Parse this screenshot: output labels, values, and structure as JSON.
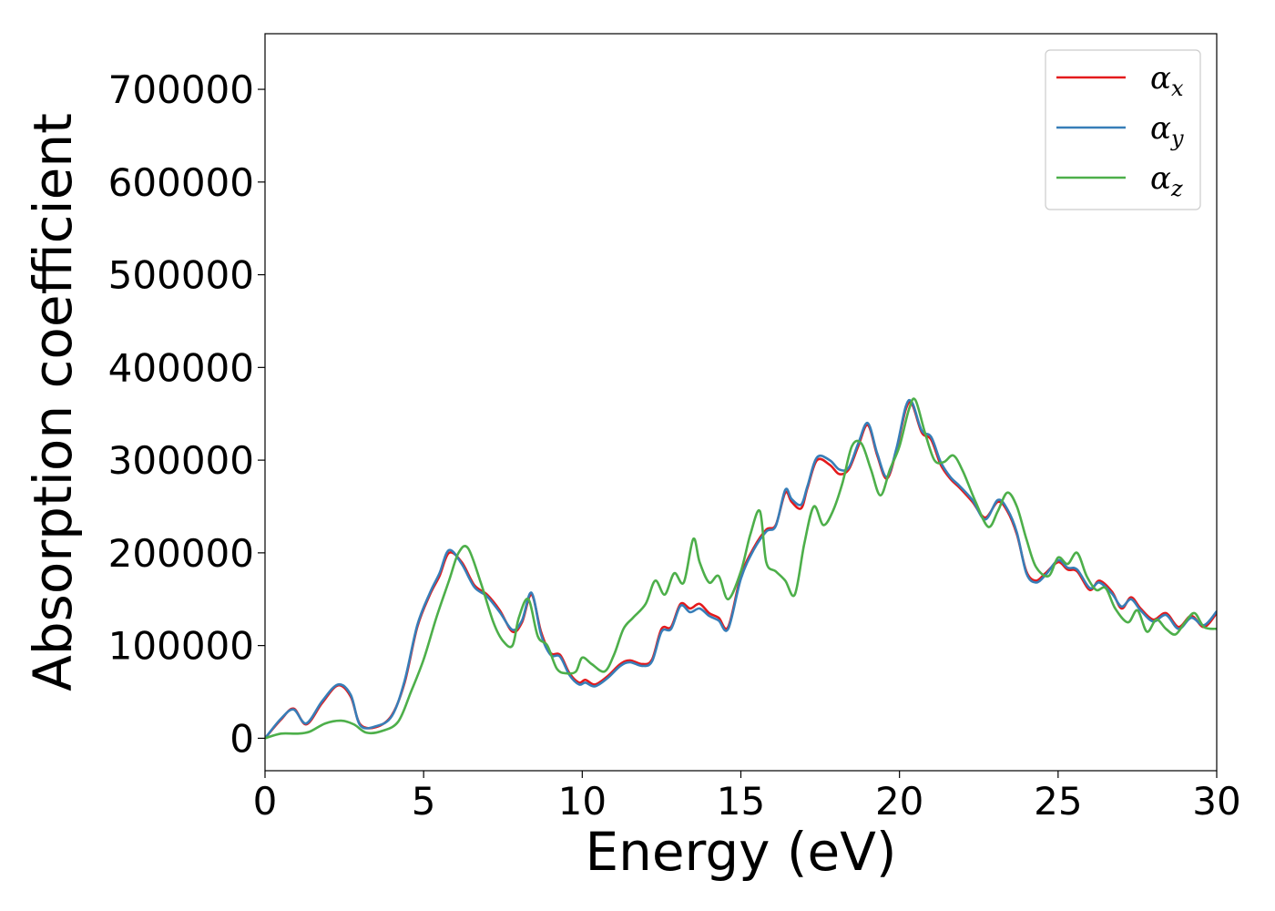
{
  "chart_data": {
    "type": "line",
    "title": "",
    "xlabel": "Energy (eV)",
    "ylabel": "Absorption coefficient",
    "xlim": [
      0,
      30
    ],
    "ylim": [
      -35000,
      760000
    ],
    "xticks": [
      0,
      5,
      10,
      15,
      20,
      25,
      30
    ],
    "yticks": [
      0,
      100000,
      200000,
      300000,
      400000,
      500000,
      600000,
      700000
    ],
    "grid": false,
    "legend_position": "top-right",
    "series": [
      {
        "name": "α_x",
        "symbol": "α",
        "subscript": "x",
        "color": "#e41a1c",
        "x": [
          0,
          0.5,
          0.9,
          1.3,
          1.8,
          2.3,
          2.7,
          3.0,
          3.5,
          4.0,
          4.4,
          4.8,
          5.2,
          5.5,
          5.8,
          6.2,
          6.6,
          7.0,
          7.4,
          7.8,
          8.1,
          8.4,
          8.7,
          9.0,
          9.3,
          9.6,
          9.9,
          10.1,
          10.4,
          10.8,
          11.2,
          11.5,
          11.9,
          12.2,
          12.5,
          12.8,
          13.1,
          13.4,
          13.7,
          14.0,
          14.3,
          14.6,
          15.0,
          15.4,
          15.8,
          16.1,
          16.4,
          16.6,
          16.9,
          17.1,
          17.4,
          17.8,
          18.1,
          18.4,
          18.7,
          19.0,
          19.3,
          19.6,
          19.9,
          20.2,
          20.4,
          20.7,
          21.0,
          21.3,
          21.6,
          21.9,
          22.3,
          22.7,
          23.1,
          23.4,
          23.7,
          24.0,
          24.3,
          24.6,
          25.0,
          25.3,
          25.6,
          26.0,
          26.3,
          26.7,
          27.0,
          27.3,
          27.6,
          28.0,
          28.4,
          28.8,
          29.2,
          29.6,
          30.0
        ],
        "y": [
          0,
          20000,
          32000,
          15000,
          38000,
          57000,
          45000,
          15000,
          12000,
          25000,
          60000,
          120000,
          155000,
          175000,
          200000,
          190000,
          165000,
          155000,
          138000,
          115000,
          125000,
          155000,
          115000,
          92000,
          90000,
          70000,
          60000,
          63000,
          58000,
          67000,
          80000,
          84000,
          80000,
          85000,
          118000,
          120000,
          145000,
          140000,
          145000,
          135000,
          130000,
          120000,
          175000,
          205000,
          225000,
          230000,
          265000,
          255000,
          248000,
          270000,
          300000,
          295000,
          285000,
          290000,
          315000,
          338000,
          305000,
          280000,
          310000,
          355000,
          360000,
          330000,
          322000,
          295000,
          280000,
          270000,
          255000,
          238000,
          255000,
          245000,
          220000,
          180000,
          170000,
          178000,
          190000,
          182000,
          180000,
          160000,
          170000,
          158000,
          140000,
          152000,
          140000,
          128000,
          135000,
          120000,
          132000,
          120000,
          135000
        ]
      },
      {
        "name": "α_y",
        "symbol": "α",
        "subscript": "y",
        "color": "#377eb8",
        "x": [
          0,
          0.5,
          0.9,
          1.3,
          1.8,
          2.3,
          2.7,
          3.0,
          3.5,
          4.0,
          4.4,
          4.8,
          5.2,
          5.5,
          5.8,
          6.2,
          6.6,
          7.0,
          7.4,
          7.8,
          8.1,
          8.4,
          8.7,
          9.0,
          9.3,
          9.6,
          9.9,
          10.1,
          10.4,
          10.8,
          11.2,
          11.5,
          11.9,
          12.2,
          12.5,
          12.8,
          13.1,
          13.4,
          13.7,
          14.0,
          14.3,
          14.6,
          15.0,
          15.4,
          15.8,
          16.1,
          16.4,
          16.6,
          16.9,
          17.1,
          17.4,
          17.8,
          18.1,
          18.4,
          18.7,
          19.0,
          19.3,
          19.6,
          19.9,
          20.2,
          20.4,
          20.7,
          21.0,
          21.3,
          21.6,
          21.9,
          22.3,
          22.7,
          23.1,
          23.4,
          23.7,
          24.0,
          24.3,
          24.6,
          25.0,
          25.3,
          25.6,
          26.0,
          26.3,
          26.7,
          27.0,
          27.3,
          27.6,
          28.0,
          28.4,
          28.8,
          29.2,
          29.6,
          30.0
        ],
        "y": [
          0,
          21000,
          31000,
          16000,
          40000,
          58000,
          47000,
          14000,
          13000,
          24000,
          62000,
          122000,
          157000,
          178000,
          203000,
          188000,
          163000,
          153000,
          136000,
          117000,
          127000,
          157000,
          112000,
          90000,
          88000,
          68000,
          58000,
          60000,
          56000,
          65000,
          78000,
          82000,
          78000,
          83000,
          115000,
          118000,
          143000,
          136000,
          140000,
          132000,
          127000,
          118000,
          172000,
          203000,
          223000,
          229000,
          268000,
          258000,
          252000,
          272000,
          303000,
          300000,
          290000,
          292000,
          318000,
          340000,
          307000,
          282000,
          312000,
          358000,
          362000,
          332000,
          325000,
          298000,
          282000,
          272000,
          257000,
          236000,
          257000,
          247000,
          222000,
          178000,
          168000,
          176000,
          192000,
          184000,
          182000,
          162000,
          168000,
          156000,
          142000,
          150000,
          138000,
          126000,
          133000,
          118000,
          130000,
          122000,
          137000
        ]
      },
      {
        "name": "α_z",
        "symbol": "α",
        "subscript": "z",
        "color": "#4daf4a",
        "x": [
          0,
          0.5,
          1.0,
          1.4,
          1.9,
          2.4,
          2.8,
          3.2,
          3.7,
          4.2,
          4.6,
          5.0,
          5.4,
          5.8,
          6.1,
          6.4,
          6.8,
          7.2,
          7.5,
          7.8,
          8.0,
          8.3,
          8.6,
          8.9,
          9.2,
          9.5,
          9.8,
          10.0,
          10.3,
          10.7,
          11.0,
          11.3,
          11.6,
          12.0,
          12.3,
          12.6,
          12.9,
          13.2,
          13.5,
          13.7,
          14.0,
          14.3,
          14.6,
          15.0,
          15.3,
          15.6,
          15.8,
          16.1,
          16.4,
          16.7,
          17.0,
          17.3,
          17.6,
          17.9,
          18.2,
          18.5,
          18.8,
          19.1,
          19.4,
          19.7,
          20.0,
          20.3,
          20.5,
          20.8,
          21.1,
          21.4,
          21.7,
          22.0,
          22.4,
          22.8,
          23.1,
          23.4,
          23.7,
          24.0,
          24.3,
          24.7,
          25.0,
          25.3,
          25.6,
          25.9,
          26.2,
          26.5,
          26.8,
          27.2,
          27.5,
          27.8,
          28.1,
          28.4,
          28.7,
          29.0,
          29.3,
          29.6,
          30.0
        ],
        "y": [
          0,
          5000,
          5000,
          7000,
          16000,
          19000,
          15000,
          6000,
          8000,
          18000,
          50000,
          85000,
          130000,
          170000,
          200000,
          205000,
          168000,
          125000,
          105000,
          100000,
          130000,
          150000,
          110000,
          100000,
          75000,
          70000,
          72000,
          87000,
          80000,
          72000,
          90000,
          118000,
          130000,
          145000,
          170000,
          155000,
          178000,
          168000,
          215000,
          190000,
          168000,
          175000,
          150000,
          180000,
          220000,
          245000,
          190000,
          180000,
          170000,
          155000,
          210000,
          250000,
          230000,
          245000,
          275000,
          315000,
          318000,
          290000,
          262000,
          290000,
          315000,
          355000,
          365000,
          330000,
          300000,
          298000,
          305000,
          288000,
          255000,
          228000,
          245000,
          265000,
          250000,
          215000,
          185000,
          175000,
          195000,
          188000,
          200000,
          175000,
          160000,
          162000,
          140000,
          125000,
          138000,
          115000,
          128000,
          118000,
          112000,
          125000,
          135000,
          120000,
          118000
        ]
      }
    ]
  }
}
